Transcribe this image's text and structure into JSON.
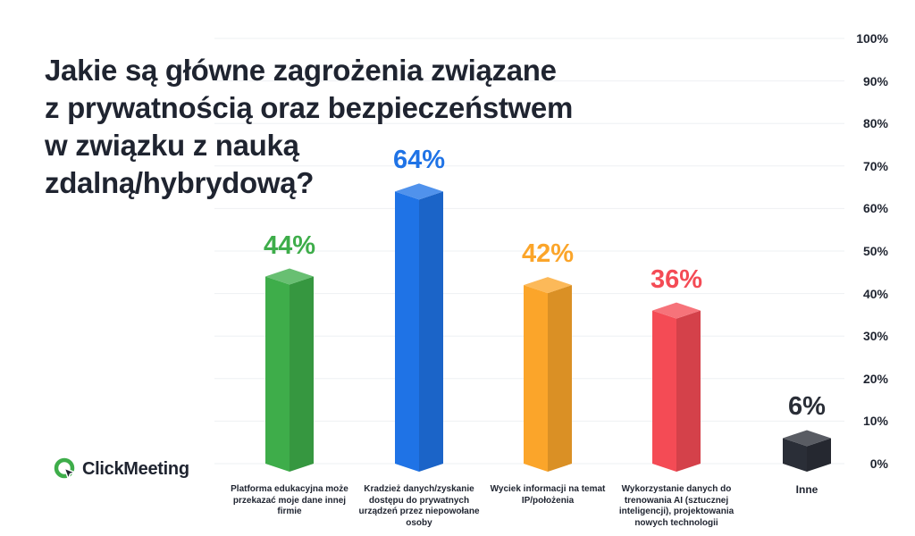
{
  "chart_data": {
    "type": "bar",
    "title": "Jakie są główne zagrożenia związane z prywatnością oraz bezpieczeństwem w związku z nauką zdalną/hybrydową?",
    "title_lines": [
      "Jakie są główne zagrożenia związane",
      "z prywatnością oraz bezpieczeństwem",
      "w związku z nauką",
      "zdalną/hybrydową?"
    ],
    "categories": [
      "Platforma edukacyjna może przekazać moje dane innej firmie",
      "Kradzież danych/zyskanie dostępu do prywatnych urządzeń przez niepowołane osoby",
      "Wyciek informacji na temat IP/położenia",
      "Wykorzystanie danych do trenowania AI (sztucznej inteligencji), projektowania nowych technologii",
      "Inne"
    ],
    "values": [
      44,
      64,
      42,
      36,
      6
    ],
    "value_labels": [
      "44%",
      "64%",
      "42%",
      "36%",
      "6%"
    ],
    "colors": [
      "#3ead4a",
      "#1f73e6",
      "#fba52a",
      "#f44b55",
      "#2a2e37"
    ],
    "ylim": [
      0,
      100
    ],
    "yticks": [
      "0%",
      "10%",
      "20%",
      "30%",
      "40%",
      "50%",
      "60%",
      "70%",
      "80%",
      "90%",
      "100%"
    ],
    "grid": true,
    "xlabel": "",
    "ylabel": ""
  },
  "brand": {
    "name": "ClickMeeting",
    "logo_icon": "clickmeeting-logo-icon",
    "accent": "#3ead4a"
  }
}
